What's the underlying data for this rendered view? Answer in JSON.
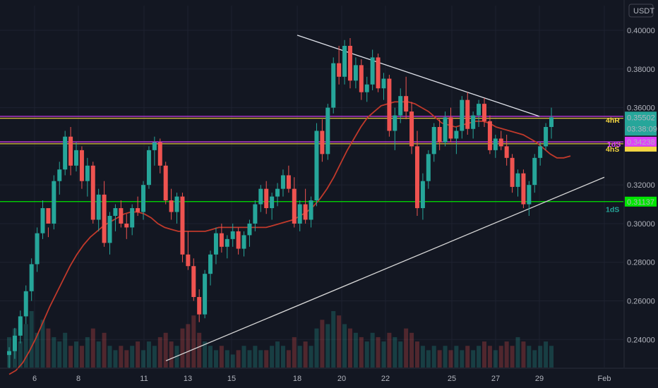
{
  "chart_data": {
    "type": "candlestick",
    "currency": "USDT",
    "x_tick_labels": [
      "6",
      "8",
      "11",
      "13",
      "15",
      "18",
      "20",
      "22",
      "25",
      "27",
      "29",
      "Feb"
    ],
    "y_tick_labels": [
      "0.40000",
      "0.38000",
      "0.36000",
      "0.32000",
      "0.30000",
      "0.28000",
      "0.26000",
      "0.24000"
    ],
    "y_ticks": [
      0.4,
      0.38,
      0.36,
      0.32,
      0.3,
      0.28,
      0.26,
      0.24
    ],
    "ylim": [
      0.2255,
      0.4128
    ],
    "countdown": "03:38:09",
    "price_labels": [
      {
        "text": "0.35502",
        "value": 0.35502,
        "color": "#26a69a"
      },
      {
        "text": "0.34238",
        "value": 0.34238,
        "color": "#e040fb"
      },
      {
        "text": "0.31137",
        "value": 0.31137,
        "color": "#00e600"
      }
    ],
    "horizontal_levels": [
      {
        "label": "4hR",
        "value": 0.3555,
        "color": "#e040fb",
        "label_color": "#f5d742"
      },
      {
        "label": "",
        "value": 0.3545,
        "color": "#f5d742"
      },
      {
        "label": "1dS",
        "value": 0.3423,
        "color": "#e040fb",
        "label_color": "#e040fb"
      },
      {
        "label": "4hS",
        "value": 0.3413,
        "color": "#f5d742",
        "label_color": "#f5d742"
      },
      {
        "label": "1dS",
        "value": 0.3114,
        "color": "#00e600",
        "label_color": "#26a69a"
      }
    ],
    "trendlines": [
      {
        "name": "upper",
        "color": "#e0e3eb",
        "points": [
          [
            "18",
            0.3975
          ],
          [
            "29",
            0.3555
          ]
        ]
      },
      {
        "name": "lower",
        "color": "#d8d8d8",
        "points": [
          [
            "12",
            0.229
          ],
          [
            "Feb",
            0.324
          ]
        ]
      }
    ],
    "candles_ohlc": [
      [
        0.232,
        0.236,
        0.225,
        0.234
      ],
      [
        0.234,
        0.246,
        0.23,
        0.242
      ],
      [
        0.242,
        0.255,
        0.238,
        0.252
      ],
      [
        0.252,
        0.268,
        0.248,
        0.265
      ],
      [
        0.265,
        0.282,
        0.26,
        0.279
      ],
      [
        0.279,
        0.298,
        0.275,
        0.295
      ],
      [
        0.295,
        0.312,
        0.292,
        0.308
      ],
      [
        0.308,
        0.298,
        0.293,
        0.3
      ],
      [
        0.3,
        0.325,
        0.297,
        0.322
      ],
      [
        0.322,
        0.332,
        0.315,
        0.328
      ],
      [
        0.328,
        0.348,
        0.325,
        0.345
      ],
      [
        0.345,
        0.35,
        0.325,
        0.33
      ],
      [
        0.33,
        0.342,
        0.327,
        0.338
      ],
      [
        0.338,
        0.34,
        0.318,
        0.322
      ],
      [
        0.322,
        0.334,
        0.314,
        0.33
      ],
      [
        0.33,
        0.332,
        0.3,
        0.302
      ],
      [
        0.302,
        0.318,
        0.296,
        0.315
      ],
      [
        0.315,
        0.322,
        0.288,
        0.29
      ],
      [
        0.29,
        0.306,
        0.284,
        0.304
      ],
      [
        0.304,
        0.31,
        0.296,
        0.308
      ],
      [
        0.308,
        0.312,
        0.298,
        0.3
      ],
      [
        0.3,
        0.305,
        0.292,
        0.298
      ],
      [
        0.298,
        0.31,
        0.294,
        0.308
      ],
      [
        0.308,
        0.314,
        0.304,
        0.306
      ],
      [
        0.306,
        0.322,
        0.302,
        0.32
      ],
      [
        0.32,
        0.34,
        0.318,
        0.338
      ],
      [
        0.338,
        0.345,
        0.33,
        0.342
      ],
      [
        0.342,
        0.344,
        0.326,
        0.33
      ],
      [
        0.33,
        0.332,
        0.31,
        0.312
      ],
      [
        0.312,
        0.318,
        0.302,
        0.306
      ],
      [
        0.306,
        0.316,
        0.3,
        0.314
      ],
      [
        0.314,
        0.316,
        0.28,
        0.284
      ],
      [
        0.284,
        0.296,
        0.276,
        0.278
      ],
      [
        0.278,
        0.282,
        0.26,
        0.262
      ],
      [
        0.262,
        0.266,
        0.249,
        0.253
      ],
      [
        0.253,
        0.276,
        0.251,
        0.274
      ],
      [
        0.274,
        0.286,
        0.268,
        0.284
      ],
      [
        0.284,
        0.298,
        0.279,
        0.295
      ],
      [
        0.295,
        0.3,
        0.285,
        0.288
      ],
      [
        0.288,
        0.294,
        0.282,
        0.292
      ],
      [
        0.292,
        0.3,
        0.288,
        0.296
      ],
      [
        0.296,
        0.298,
        0.284,
        0.287
      ],
      [
        0.287,
        0.296,
        0.283,
        0.294
      ],
      [
        0.294,
        0.302,
        0.288,
        0.3
      ],
      [
        0.3,
        0.312,
        0.296,
        0.31
      ],
      [
        0.31,
        0.32,
        0.306,
        0.318
      ],
      [
        0.318,
        0.322,
        0.305,
        0.308
      ],
      [
        0.308,
        0.316,
        0.302,
        0.314
      ],
      [
        0.314,
        0.321,
        0.309,
        0.318
      ],
      [
        0.318,
        0.328,
        0.314,
        0.325
      ],
      [
        0.325,
        0.33,
        0.316,
        0.318
      ],
      [
        0.318,
        0.324,
        0.298,
        0.3
      ],
      [
        0.3,
        0.312,
        0.296,
        0.31
      ],
      [
        0.31,
        0.318,
        0.3,
        0.302
      ],
      [
        0.302,
        0.314,
        0.298,
        0.312
      ],
      [
        0.312,
        0.352,
        0.309,
        0.348
      ],
      [
        0.348,
        0.354,
        0.332,
        0.336
      ],
      [
        0.336,
        0.362,
        0.333,
        0.36
      ],
      [
        0.36,
        0.386,
        0.357,
        0.383
      ],
      [
        0.383,
        0.392,
        0.372,
        0.376
      ],
      [
        0.376,
        0.395,
        0.372,
        0.392
      ],
      [
        0.392,
        0.396,
        0.37,
        0.374
      ],
      [
        0.374,
        0.386,
        0.37,
        0.382
      ],
      [
        0.382,
        0.385,
        0.364,
        0.368
      ],
      [
        0.368,
        0.376,
        0.363,
        0.372
      ],
      [
        0.372,
        0.39,
        0.369,
        0.386
      ],
      [
        0.386,
        0.388,
        0.368,
        0.37
      ],
      [
        0.37,
        0.378,
        0.364,
        0.375
      ],
      [
        0.375,
        0.377,
        0.345,
        0.348
      ],
      [
        0.348,
        0.36,
        0.338,
        0.356
      ],
      [
        0.356,
        0.37,
        0.352,
        0.366
      ],
      [
        0.366,
        0.376,
        0.354,
        0.358
      ],
      [
        0.358,
        0.363,
        0.336,
        0.34
      ],
      [
        0.34,
        0.348,
        0.304,
        0.308
      ],
      [
        0.308,
        0.326,
        0.302,
        0.322
      ],
      [
        0.322,
        0.338,
        0.318,
        0.336
      ],
      [
        0.336,
        0.352,
        0.332,
        0.35
      ],
      [
        0.35,
        0.354,
        0.338,
        0.342
      ],
      [
        0.342,
        0.358,
        0.34,
        0.355
      ],
      [
        0.355,
        0.36,
        0.342,
        0.344
      ],
      [
        0.344,
        0.35,
        0.336,
        0.348
      ],
      [
        0.348,
        0.366,
        0.344,
        0.364
      ],
      [
        0.364,
        0.368,
        0.346,
        0.349
      ],
      [
        0.349,
        0.358,
        0.344,
        0.356
      ],
      [
        0.356,
        0.364,
        0.35,
        0.362
      ],
      [
        0.362,
        0.365,
        0.35,
        0.353
      ],
      [
        0.353,
        0.356,
        0.336,
        0.338
      ],
      [
        0.338,
        0.346,
        0.334,
        0.344
      ],
      [
        0.344,
        0.348,
        0.338,
        0.34
      ],
      [
        0.34,
        0.346,
        0.33,
        0.334
      ],
      [
        0.334,
        0.336,
        0.316,
        0.319
      ],
      [
        0.319,
        0.328,
        0.314,
        0.326
      ],
      [
        0.326,
        0.328,
        0.308,
        0.31
      ],
      [
        0.31,
        0.322,
        0.304,
        0.32
      ],
      [
        0.32,
        0.336,
        0.316,
        0.334
      ],
      [
        0.334,
        0.342,
        0.33,
        0.34
      ],
      [
        0.34,
        0.352,
        0.338,
        0.35
      ],
      [
        0.35,
        0.36,
        0.344,
        0.355
      ]
    ],
    "ma_series": [
      0.222,
      0.224,
      0.228,
      0.234,
      0.241,
      0.249,
      0.257,
      0.264,
      0.271,
      0.278,
      0.284,
      0.289,
      0.293,
      0.296,
      0.299,
      0.301,
      0.303,
      0.305,
      0.306,
      0.306,
      0.305,
      0.303,
      0.3,
      0.298,
      0.297,
      0.296,
      0.296,
      0.296,
      0.296,
      0.296,
      0.297,
      0.298,
      0.298,
      0.298,
      0.298,
      0.298,
      0.298,
      0.298,
      0.298,
      0.299,
      0.3,
      0.301,
      0.302,
      0.304,
      0.306,
      0.309,
      0.313,
      0.318,
      0.324,
      0.331,
      0.338,
      0.344,
      0.35,
      0.355,
      0.358,
      0.361,
      0.362,
      0.363,
      0.363,
      0.363,
      0.362,
      0.36,
      0.358,
      0.355,
      0.352,
      0.351,
      0.35,
      0.351,
      0.352,
      0.353,
      0.353,
      0.352,
      0.35,
      0.349,
      0.348,
      0.347,
      0.346,
      0.344,
      0.342,
      0.339,
      0.336,
      0.334,
      0.334,
      0.335
    ],
    "volume_bars": [
      0.7,
      0.9,
      0.6,
      1.0,
      1.3,
      0.8,
      1.1,
      0.9,
      0.7,
      0.6,
      0.8,
      0.5,
      0.6,
      0.5,
      0.7,
      0.9,
      0.6,
      0.8,
      0.5,
      0.4,
      0.5,
      0.4,
      0.5,
      0.6,
      0.4,
      0.6,
      0.5,
      0.7,
      0.8,
      0.6,
      0.5,
      0.9,
      1.0,
      1.2,
      0.8,
      0.6,
      0.5,
      0.4,
      0.5,
      0.4,
      0.3,
      0.4,
      0.5,
      0.4,
      0.5,
      0.4,
      0.4,
      0.5,
      0.6,
      0.5,
      0.4,
      0.7,
      0.5,
      0.6,
      0.5,
      0.9,
      1.1,
      1.0,
      1.3,
      1.2,
      1.0,
      0.9,
      0.8,
      0.7,
      0.6,
      0.8,
      0.7,
      0.6,
      0.8,
      0.7,
      0.6,
      0.9,
      0.8,
      0.6,
      0.5,
      0.4,
      0.5,
      0.4,
      0.5,
      0.4,
      0.5,
      0.4,
      0.5,
      0.4,
      0.5,
      0.6,
      0.5,
      0.4,
      0.5,
      0.6,
      0.5,
      0.7,
      0.6,
      0.5,
      0.4,
      0.5,
      0.6,
      0.5
    ],
    "colors": {
      "background": "#131722",
      "grid": "#1e2230",
      "up": "#26a69a",
      "down": "#ef5350",
      "ma": "#c0392b",
      "axis_text": "#b2b5be"
    }
  }
}
